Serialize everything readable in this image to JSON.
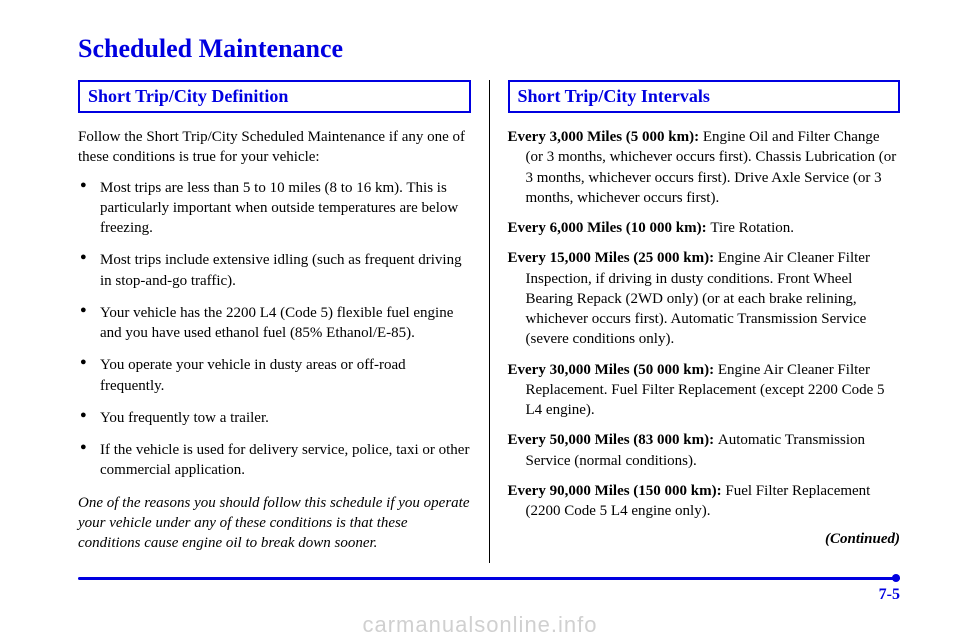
{
  "title": "Scheduled Maintenance",
  "left": {
    "heading": "Short Trip/City Definition",
    "intro": "Follow the Short Trip/City Scheduled Maintenance if any one of these conditions is true for your vehicle:",
    "bullets": [
      "Most trips are less than 5 to 10 miles (8 to 16 km). This is particularly important when outside temperatures are below freezing.",
      "Most trips include extensive idling (such as frequent driving in stop-and-go traffic).",
      "Your vehicle has the 2200 L4 (Code 5) flexible fuel engine and you have used ethanol fuel (85% Ethanol/E-85).",
      "You operate your vehicle in dusty areas or off-road frequently.",
      "You frequently tow a trailer.",
      "If the vehicle is used for delivery service, police, taxi or other commercial application."
    ],
    "note": "One of the reasons you should follow this schedule if you operate your vehicle under any of these conditions is that these conditions cause engine oil to break down sooner."
  },
  "right": {
    "heading": "Short Trip/City Intervals",
    "items": [
      {
        "label": "Every 3,000 Miles (5 000 km): ",
        "text": "Engine Oil and Filter Change (or 3 months, whichever occurs first). Chassis Lubrication (or 3 months, whichever occurs first). Drive Axle Service (or 3 months, whichever occurs first)."
      },
      {
        "label": "Every 6,000 Miles (10 000 km): ",
        "text": "Tire Rotation."
      },
      {
        "label": "Every 15,000 Miles (25 000 km): ",
        "text": "Engine Air Cleaner Filter Inspection, if driving in dusty conditions. Front Wheel Bearing Repack (2WD only) (or at each brake relining, whichever occurs first). Automatic Transmission Service (severe conditions only)."
      },
      {
        "label": "Every 30,000 Miles (50 000 km): ",
        "text": "Engine Air Cleaner Filter Replacement. Fuel Filter Replacement (except 2200 Code 5 L4 engine)."
      },
      {
        "label": "Every 50,000 Miles (83 000 km): ",
        "text": "Automatic Transmission Service (normal conditions)."
      },
      {
        "label": "Every 90,000 Miles (150 000 km): ",
        "text": "Fuel Filter Replacement (2200 Code 5 L4 engine only)."
      }
    ],
    "continued": "(Continued)"
  },
  "pageNumber": "7-5",
  "watermark": "carmanualsonline.info",
  "colors": {
    "accent": "#0000e0",
    "text": "#000000",
    "watermark": "#d0d0d0",
    "background": "#ffffff"
  }
}
